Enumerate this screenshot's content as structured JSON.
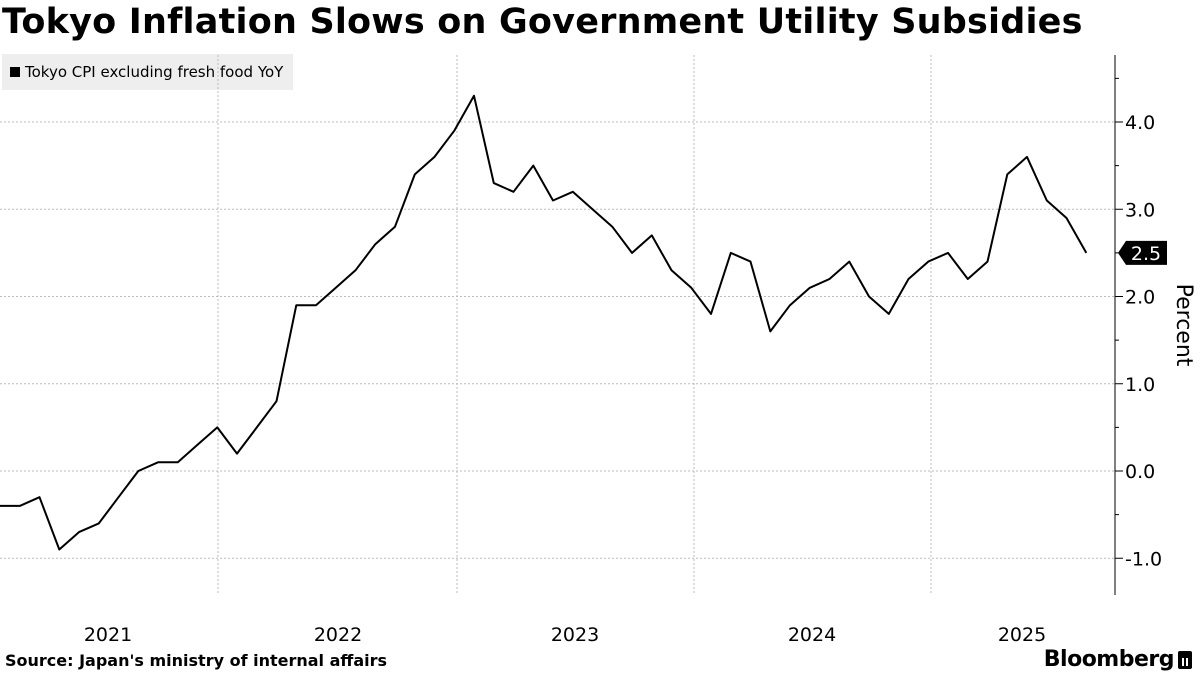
{
  "chart_data": {
    "type": "line",
    "title": "Tokyo Inflation Slows on Government Utility Subsidies",
    "series": [
      {
        "name": "Tokyo CPI excluding fresh food YoY",
        "values": [
          -0.4,
          -0.4,
          -0.3,
          -0.9,
          -0.7,
          -0.6,
          -0.3,
          0.0,
          0.1,
          0.1,
          0.3,
          0.5,
          0.2,
          0.5,
          0.8,
          1.9,
          1.9,
          2.1,
          2.3,
          2.6,
          2.8,
          3.4,
          3.6,
          3.9,
          4.3,
          3.3,
          3.2,
          3.5,
          3.1,
          3.2,
          3.0,
          2.8,
          2.5,
          2.7,
          2.3,
          2.1,
          1.8,
          2.5,
          2.4,
          1.6,
          1.9,
          2.1,
          2.2,
          2.4,
          2.0,
          1.8,
          2.2,
          2.4,
          2.5,
          2.2,
          2.4,
          3.4,
          3.6,
          3.1,
          2.9,
          2.5
        ]
      }
    ],
    "x_tick_labels": [
      "2021",
      "2022",
      "2023",
      "2024",
      "2025"
    ],
    "y_ticks": [
      {
        "value": 4.0,
        "label": "4.0"
      },
      {
        "value": 3.0,
        "label": "3.0"
      },
      {
        "value": 2.0,
        "label": "2.0"
      },
      {
        "value": 1.0,
        "label": "1.0"
      },
      {
        "value": 0.0,
        "label": "0.0"
      },
      {
        "value": -1.0,
        "label": "-1.0"
      }
    ],
    "ylim": [
      -1.4,
      4.8
    ],
    "ylabel": "Percent",
    "last_value_label": "2.5",
    "legend": "top-left",
    "grid": true
  },
  "footer": {
    "source": "Source: Japan's ministry of internal affairs",
    "brand": "Bloomberg"
  },
  "colors": {
    "line": "#000000",
    "grid": "#bbbbbb",
    "legend_bg": "#eeeeee"
  }
}
